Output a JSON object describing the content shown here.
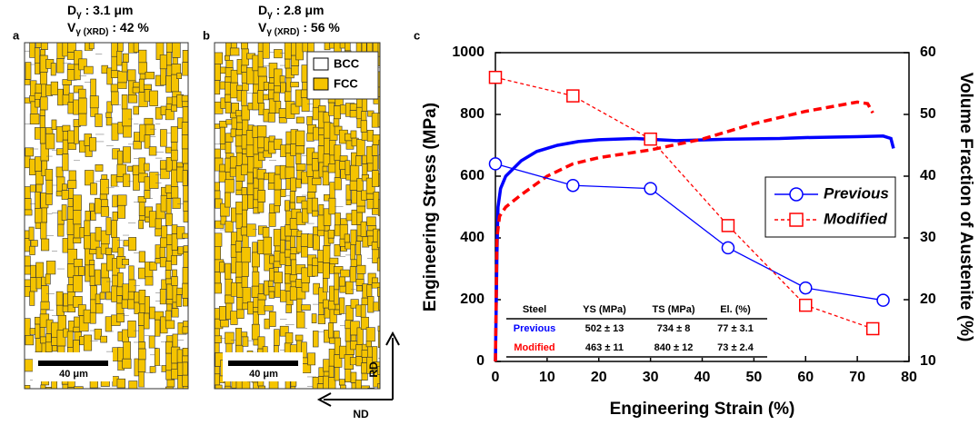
{
  "micrographs": [
    {
      "label": "a",
      "lines": [
        [
          "D",
          "γ",
          " : 3.1 μm"
        ],
        [
          "V",
          "γ (XRD)",
          " : 42 %"
        ]
      ],
      "scale_bar": "40 μm"
    },
    {
      "label": "b",
      "lines": [
        [
          "D",
          "γ",
          " : 2.8 μm"
        ],
        [
          "V",
          "γ (XRD)",
          " : 56 %"
        ]
      ],
      "scale_bar": "40 μm",
      "legend": [
        "BCC",
        "FCC"
      ]
    }
  ],
  "directions": [
    "RD",
    "ND"
  ],
  "chart_data": {
    "type": "line",
    "label": "c",
    "x_label": "Engineering Strain (%)",
    "y_label": "Engineering Stress (MPa)",
    "y2_label": "Volume Fraction of Austenite (%)",
    "xlim": [
      0,
      80
    ],
    "xticks": [
      0,
      10,
      20,
      30,
      40,
      50,
      60,
      70,
      80
    ],
    "ylim": [
      0,
      1000
    ],
    "yticks": [
      0,
      200,
      400,
      600,
      800,
      1000
    ],
    "y2lim": [
      10,
      60
    ],
    "y2ticks": [
      10,
      20,
      30,
      40,
      50,
      60
    ],
    "series": [
      {
        "color": "#0000ff",
        "dash": false,
        "x": [
          0,
          0.3,
          0.5,
          1,
          2,
          5,
          8,
          12,
          16,
          20,
          27,
          35,
          45,
          55,
          60,
          70,
          75,
          76.5,
          77
        ],
        "values": [
          0,
          350,
          500,
          560,
          600,
          650,
          680,
          700,
          712,
          718,
          722,
          715,
          720,
          722,
          725,
          728,
          730,
          722,
          690
        ]
      },
      {
        "color": "#ff0000",
        "dash": true,
        "x": [
          0,
          0.3,
          0.8,
          2,
          5,
          10,
          15,
          20,
          30,
          40,
          50,
          60,
          65,
          70,
          72,
          73
        ],
        "values": [
          0,
          400,
          470,
          500,
          540,
          600,
          640,
          660,
          685,
          720,
          770,
          810,
          825,
          840,
          835,
          805
        ]
      },
      {
        "name": "Previous",
        "axis": "y2",
        "marker": "circle",
        "dash": false,
        "color": "#0000ff",
        "x": [
          0,
          15,
          30,
          45,
          60,
          75
        ],
        "values": [
          42,
          38.5,
          38,
          28.4,
          21.9,
          19.9
        ]
      },
      {
        "name": "Modified",
        "axis": "y2",
        "marker": "square",
        "dash": true,
        "color": "#ff0000",
        "x": [
          0,
          15,
          30,
          45,
          60,
          73
        ],
        "values": [
          56,
          53,
          46,
          32,
          19.1,
          15.3
        ]
      }
    ],
    "table": {
      "columns": [
        "Steel",
        "YS (MPa)",
        "TS (MPa)",
        "El. (%)"
      ],
      "rows": [
        [
          "Previous",
          "502 ± 13",
          "734 ± 8",
          "77 ± 3.1"
        ],
        [
          "Modified",
          "463 ± 11",
          "840 ± 12",
          "73 ± 2.4"
        ]
      ],
      "row_colors": [
        "#0000ff",
        "#ff0000"
      ]
    }
  }
}
